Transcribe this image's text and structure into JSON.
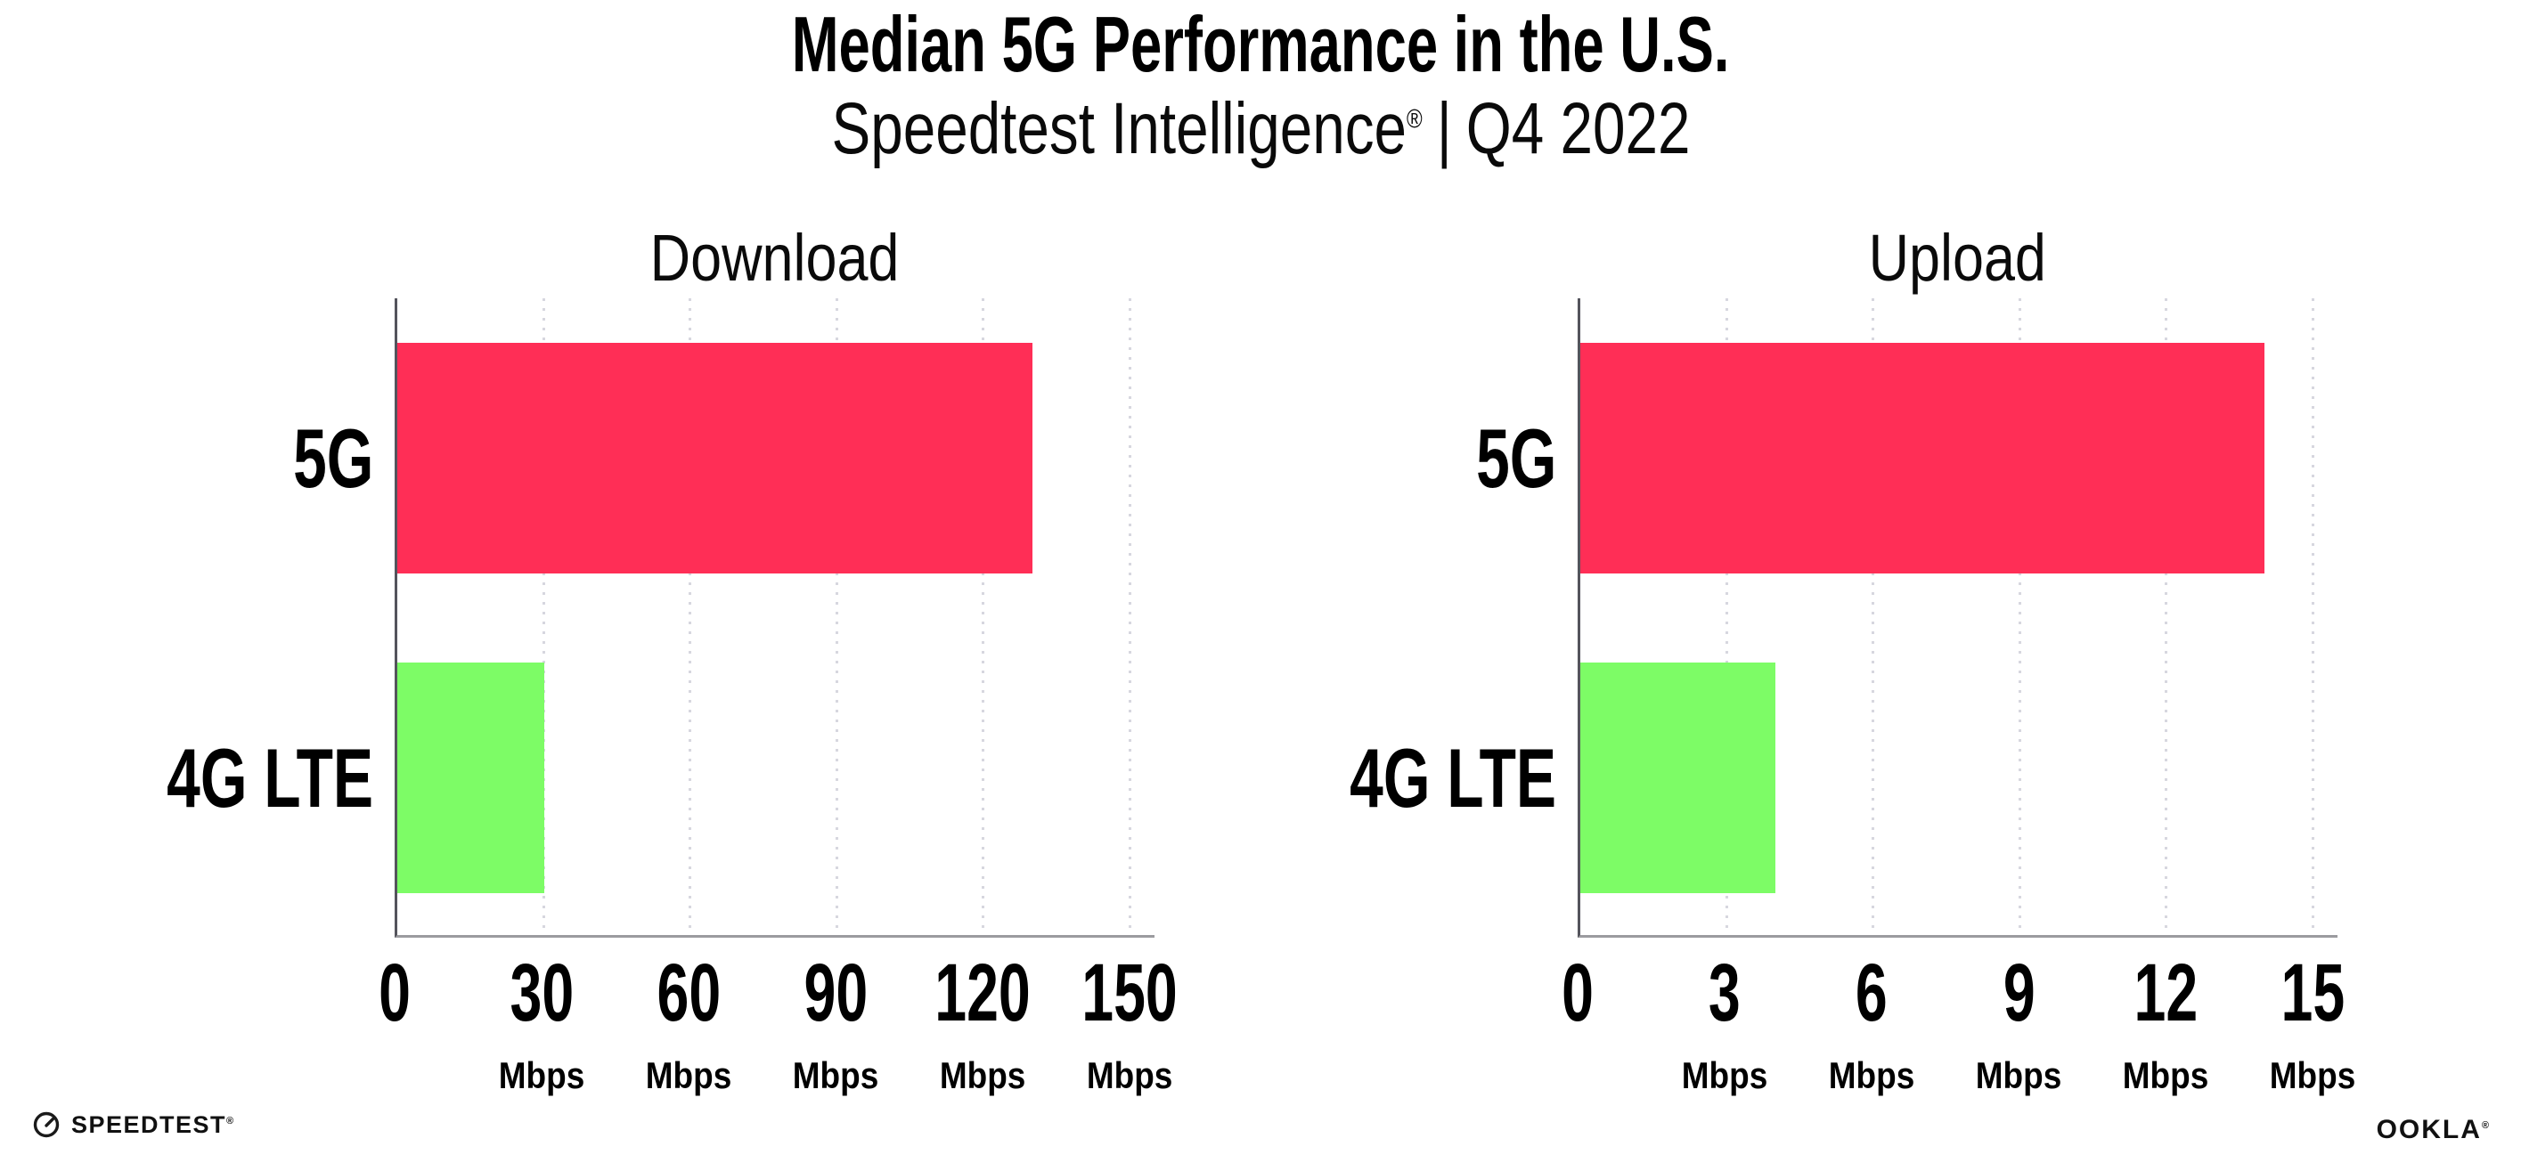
{
  "header": {
    "title": "Median 5G Performance in the U.S.",
    "subtitle_brand": "Speedtest Intelligence",
    "subtitle_registered": "®",
    "subtitle_separator": "|",
    "subtitle_period": "Q4 2022"
  },
  "chart_data": [
    {
      "type": "bar",
      "orientation": "horizontal",
      "title": "Download",
      "categories": [
        "5G",
        "4G LTE"
      ],
      "values": [
        130,
        30
      ],
      "unit": "Mbps",
      "xlim": [
        0,
        155
      ],
      "xticks": [
        0,
        30,
        60,
        90,
        120,
        150
      ],
      "grid": "dotted-vertical",
      "legend": "none",
      "bar_colors": [
        "#ff2e56",
        "#7dfc66"
      ]
    },
    {
      "type": "bar",
      "orientation": "horizontal",
      "title": "Upload",
      "categories": [
        "5G",
        "4G LTE"
      ],
      "values": [
        14,
        4
      ],
      "unit": "Mbps",
      "xlim": [
        0,
        15.5
      ],
      "xticks": [
        0,
        3,
        6,
        9,
        12,
        15
      ],
      "grid": "dotted-vertical",
      "legend": "none",
      "bar_colors": [
        "#ff2e56",
        "#7dfc66"
      ]
    }
  ],
  "footer": {
    "speedtest_text": "SPEEDTEST",
    "speedtest_mark": "®",
    "ookla_text": "OOKLA",
    "ookla_mark": "®"
  },
  "colors": {
    "bar_5g": "#ff2e56",
    "bar_4g_lte": "#7dfc66",
    "y_axis": "#54545c",
    "x_axis": "#9b9b9f",
    "grid_dots": "#d7d7df",
    "text": "#000000"
  }
}
